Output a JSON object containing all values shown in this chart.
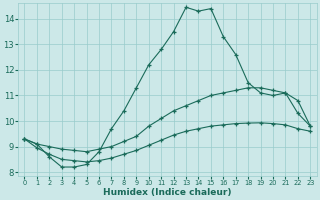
{
  "xlabel": "Humidex (Indice chaleur)",
  "bg_color": "#cce8e8",
  "grid_color": "#99cccc",
  "line_color": "#1a6b5a",
  "xlim": [
    -0.5,
    23.5
  ],
  "ylim": [
    7.85,
    14.6
  ],
  "yticks": [
    8,
    9,
    10,
    11,
    12,
    13,
    14
  ],
  "xticks": [
    0,
    1,
    2,
    3,
    4,
    5,
    6,
    7,
    8,
    9,
    10,
    11,
    12,
    13,
    14,
    15,
    16,
    17,
    18,
    19,
    20,
    21,
    22,
    23
  ],
  "curve1_x": [
    0,
    1,
    2,
    3,
    4,
    5,
    6,
    7,
    8,
    9,
    10,
    11,
    12,
    13,
    14,
    15,
    16,
    17,
    18,
    19,
    20,
    21,
    22,
    23
  ],
  "curve1_y": [
    9.3,
    9.1,
    8.6,
    8.2,
    8.2,
    8.3,
    8.8,
    9.7,
    10.4,
    11.3,
    12.2,
    12.8,
    13.5,
    14.45,
    14.3,
    14.4,
    13.3,
    12.6,
    11.5,
    11.1,
    11.0,
    11.1,
    10.3,
    9.8
  ],
  "curve2_x": [
    0,
    1,
    2,
    3,
    4,
    5,
    6,
    7,
    8,
    9,
    10,
    11,
    12,
    13,
    14,
    15,
    16,
    17,
    18,
    19,
    20,
    21,
    22,
    23
  ],
  "curve2_y": [
    9.3,
    9.1,
    9.0,
    8.9,
    8.85,
    8.8,
    8.9,
    9.0,
    9.2,
    9.4,
    9.8,
    10.1,
    10.4,
    10.6,
    10.8,
    11.0,
    11.1,
    11.2,
    11.3,
    11.3,
    11.2,
    11.1,
    10.8,
    9.8
  ],
  "curve3_x": [
    0,
    1,
    2,
    3,
    4,
    5,
    6,
    7,
    8,
    9,
    10,
    11,
    12,
    13,
    14,
    15,
    16,
    17,
    18,
    19,
    20,
    21,
    22,
    23
  ],
  "curve3_y": [
    9.3,
    8.95,
    8.7,
    8.5,
    8.45,
    8.4,
    8.45,
    8.55,
    8.7,
    8.85,
    9.05,
    9.25,
    9.45,
    9.6,
    9.7,
    9.8,
    9.85,
    9.9,
    9.92,
    9.93,
    9.9,
    9.85,
    9.7,
    9.6
  ]
}
